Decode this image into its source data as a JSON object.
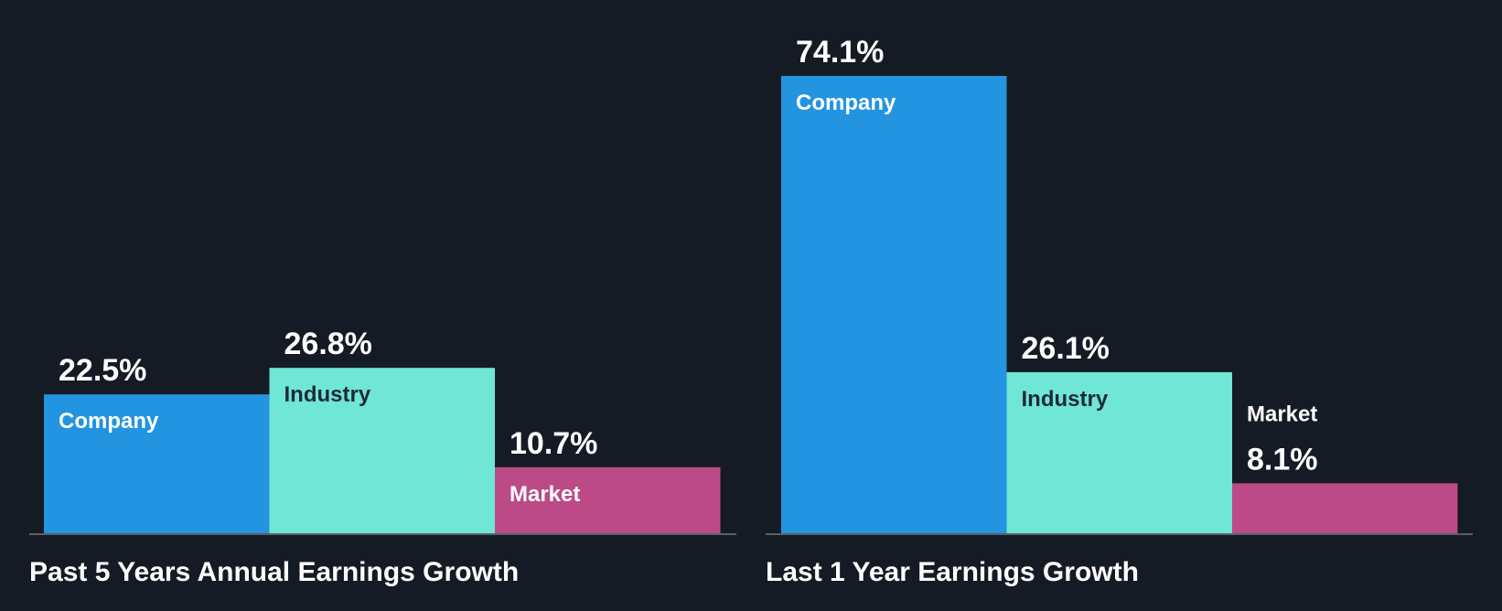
{
  "chart_data": [
    {
      "type": "bar",
      "title": "Past 5 Years Annual Earnings Growth",
      "categories": [
        "Company",
        "Industry",
        "Market"
      ],
      "values": [
        22.5,
        26.8,
        10.7
      ],
      "value_labels": [
        "22.5%",
        "26.8%",
        "10.7%"
      ],
      "ylim": [
        0,
        74.1
      ],
      "grid": false
    },
    {
      "type": "bar",
      "title": "Last 1 Year Earnings Growth",
      "categories": [
        "Company",
        "Industry",
        "Market"
      ],
      "values": [
        74.1,
        26.1,
        8.1
      ],
      "value_labels": [
        "74.1%",
        "26.1%",
        "8.1%"
      ],
      "ylim": [
        0,
        74.1
      ],
      "grid": false
    }
  ],
  "colors": {
    "background": "#151b24",
    "company": "#2394df",
    "industry": "#6fe6d6",
    "market": "#bb4a87",
    "label_on_dark": "#ffffff",
    "label_on_light": "#1e2a38",
    "baseline": "#5b6068"
  }
}
